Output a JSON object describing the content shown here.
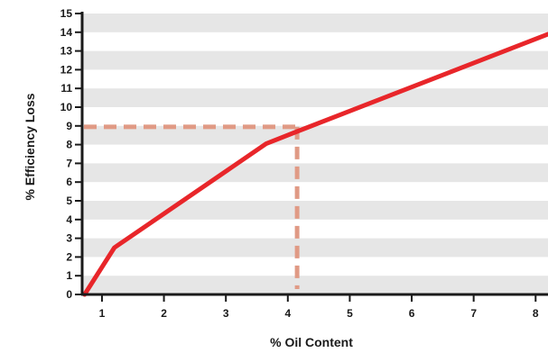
{
  "chart_data": {
    "type": "line",
    "title": "",
    "xlabel": "% Oil Content",
    "ylabel": "% Efficiency Loss",
    "xlim": [
      0.68,
      8.2
    ],
    "ylim": [
      0,
      15
    ],
    "xticks": [
      1,
      2,
      3,
      4,
      5,
      6,
      7,
      8
    ],
    "yticks": [
      0,
      1,
      2,
      3,
      4,
      5,
      6,
      7,
      8,
      9,
      10,
      11,
      12,
      13,
      14,
      15
    ],
    "grid": "alternating horizontal bands",
    "series": [
      {
        "name": "",
        "color": "#e8262a",
        "x": [
          0.72,
          1.2,
          3.65,
          4.15,
          8.2
        ],
        "y": [
          0,
          2.5,
          8.05,
          8.7,
          13.9
        ]
      }
    ],
    "annotations": [
      {
        "type": "reference-lines",
        "style": "dashed",
        "color": "#e09a85",
        "x": 4.15,
        "y": 8.95
      }
    ],
    "colors": {
      "band": "#e6e6e6",
      "axis": "#1a1a1a",
      "line": "#e8262a",
      "reference": "#e09a85"
    }
  }
}
